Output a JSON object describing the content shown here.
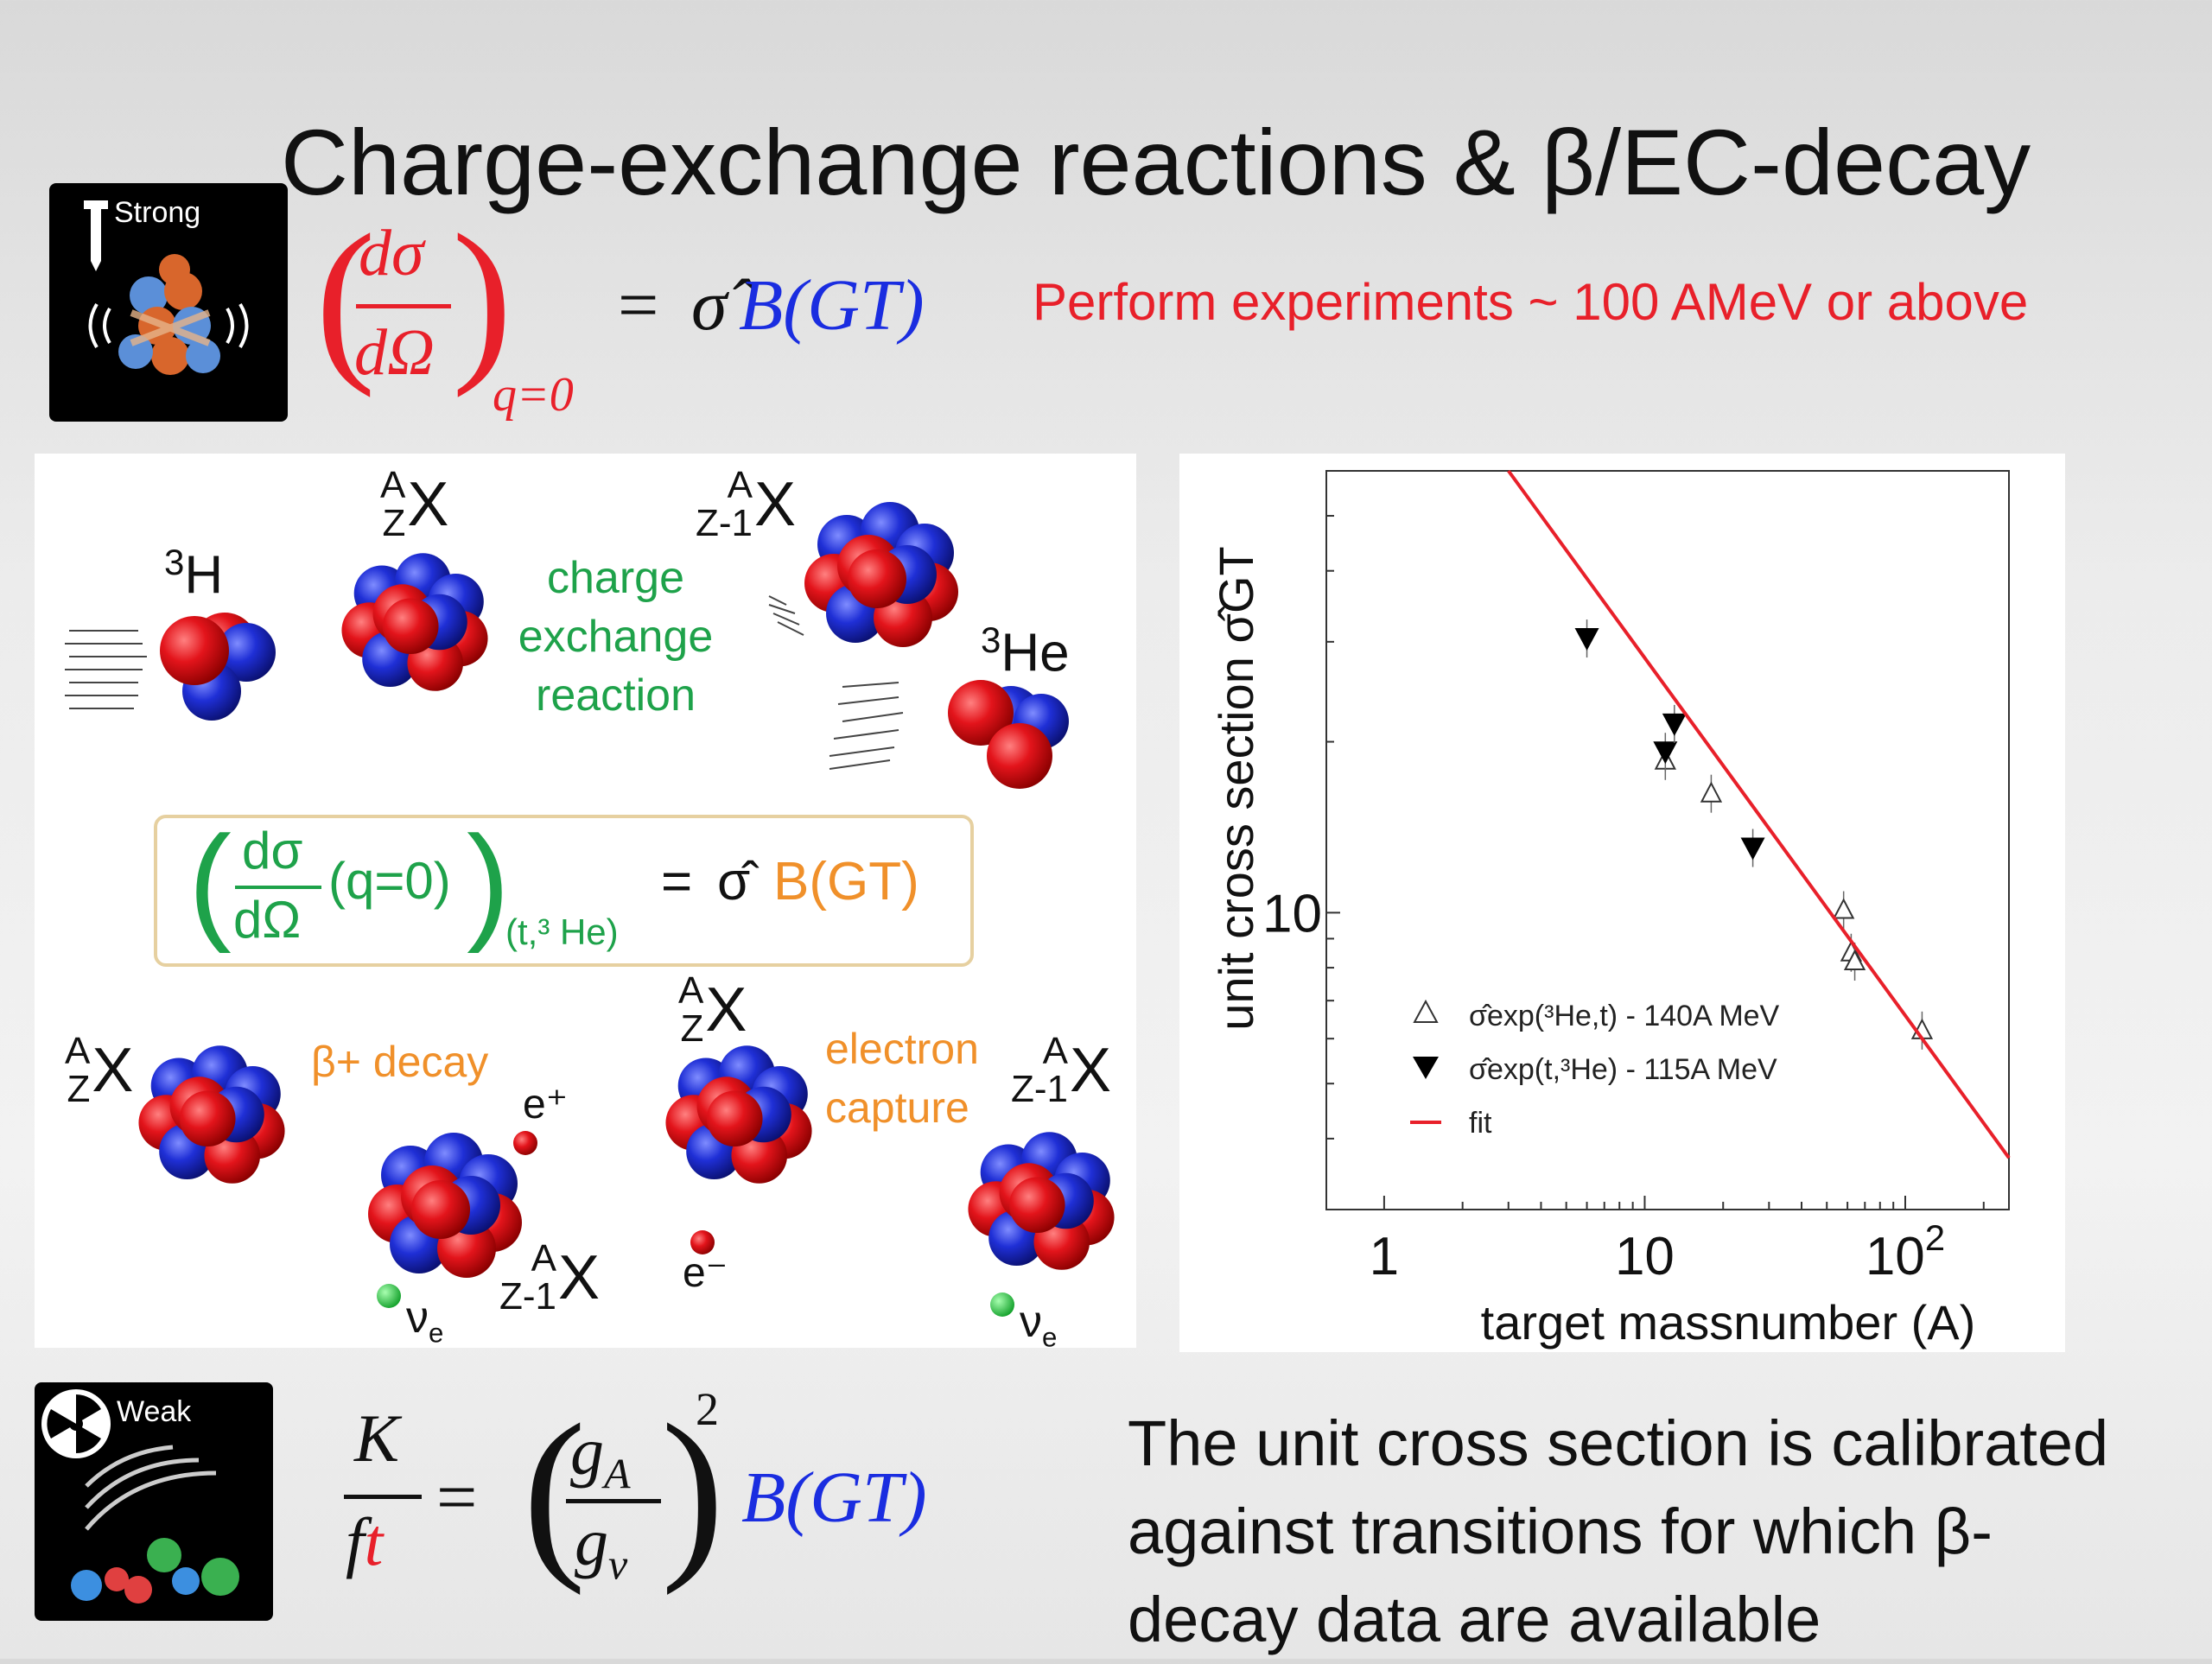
{
  "slide": {
    "title": "Charge-exchange reactions & β/EC-decay",
    "strong_label": "Strong",
    "weak_label": "Weak",
    "eq_top": {
      "dsigma": "dσ",
      "domega": "dΩ",
      "q0": "q=0",
      "eq": "=",
      "sigma_hat": "σ̂",
      "bgt": "B(GT)"
    },
    "experiment_note": "Perform experiments ~ 100 AMeV or above",
    "bottom_text": [
      "The unit cross section is calibrated",
      "against transitions for which β-",
      "decay data are available"
    ],
    "eq_bottom": {
      "K": "K",
      "f": "f",
      "t": "t",
      "eq": "=",
      "gA": "g",
      "gA_sub": "A",
      "gv": "g",
      "gv_sub": "v",
      "pow": "2",
      "bgt": "B(GT)"
    }
  },
  "reaction_panel": {
    "h3_mass": "3",
    "h3_sym": "H",
    "x_A": "A",
    "x_Z": "Z",
    "x_sym": "X",
    "y_A": "A",
    "y_Z": "Z-1",
    "y_sym": "X",
    "he3_mass": "3",
    "he3_sym": "He",
    "cx_text": [
      "charge",
      "exchange",
      "reaction"
    ],
    "eq_dsigma": "dσ",
    "eq_domega": "dΩ",
    "eq_q": "(q=0)",
    "eq_sub": "(t,³ He)",
    "eq_eq": "=",
    "eq_sigma": "σ̂",
    "eq_bgt": "B(GT)",
    "beta_label": "β+ decay",
    "ec_label": [
      "electron",
      "capture"
    ],
    "positron": "e⁺",
    "electron": "e⁻",
    "nu": "ν",
    "nu_sub": "e",
    "colors": {
      "proton": "#e3141b",
      "neutron": "#1f2fd6",
      "neutrino": "#1db83a"
    }
  },
  "chart_data": {
    "type": "scatter",
    "xlabel": "target massnumber (A)",
    "ylabel": "unit cross section σ̂GT",
    "x_scale": "log",
    "y_scale": "log",
    "xlim": [
      0.6,
      250
    ],
    "ylim": [
      3,
      60
    ],
    "x_ticks": [
      {
        "value": 1,
        "label": "1"
      },
      {
        "value": 10,
        "label": "10"
      },
      {
        "value": 100,
        "label": "10²"
      }
    ],
    "y_ticks": [
      {
        "value": 10,
        "label": "10"
      }
    ],
    "series": [
      {
        "name": "σ̂exp(³He,t) - 140A MeV",
        "marker": "open-triangle-up",
        "points": [
          [
            12,
            18.5
          ],
          [
            18,
            16.2
          ],
          [
            58,
            10.1
          ],
          [
            62,
            8.5
          ],
          [
            64,
            8.2
          ],
          [
            116,
            6.2
          ]
        ]
      },
      {
        "name": "σ̂exp(t,³He) - 115A MeV",
        "marker": "filled-triangle-down",
        "points": [
          [
            6,
            30.4
          ],
          [
            12,
            19.2
          ],
          [
            13,
            21.5
          ],
          [
            26,
            13.0
          ]
        ]
      },
      {
        "name": "fit",
        "marker": "line",
        "color": "#e8202a",
        "points": [
          [
            3.0,
            60
          ],
          [
            250,
            3.7
          ]
        ]
      }
    ],
    "legend": {
      "position": "bottom-left"
    }
  }
}
